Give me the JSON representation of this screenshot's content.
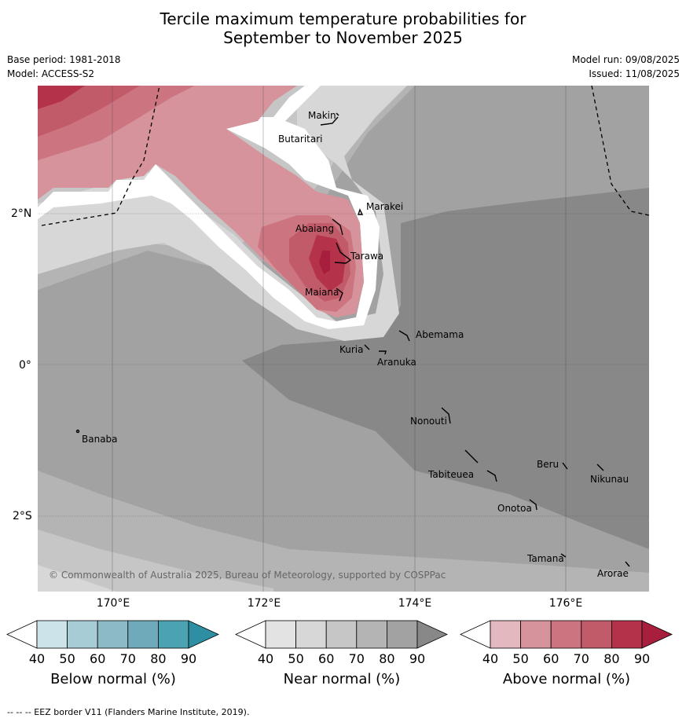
{
  "title_line1": "Tercile maximum temperature probabilities for",
  "title_line2": "September to November 2025",
  "base_period": "Base period: 1981-2018",
  "model": "Model: ACCESS-S2",
  "model_run": "Model run: 09/08/2025",
  "issued": "Issued: 11/08/2025",
  "copyright": "© Commonwealth of Australia 2025, Bureau of Meteorology, supported by COSPPac",
  "lat_labels": [
    "2°N",
    "0°",
    "2°S"
  ],
  "lon_labels": [
    "170°E",
    "172°E",
    "174°E",
    "176°E"
  ],
  "islands": {
    "makin": "Makin",
    "butaritari": "Butaritari",
    "marakei": "Marakei",
    "abaiang": "Abaiang",
    "tarawa": "Tarawa",
    "maiana": "Maiana",
    "abemama": "Abemama",
    "kuria": "Kuria",
    "aranuka": "Aranuka",
    "nonouti": "Nonouti",
    "banaba": "Banaba",
    "beru": "Beru",
    "nikunau": "Nikunau",
    "tabiteuea": "Tabiteuea",
    "onotoa": "Onotoa",
    "tamana": "Tamana",
    "arorae": "Arorae"
  },
  "colorbars": {
    "ticks": [
      "40",
      "50",
      "60",
      "70",
      "80",
      "90"
    ],
    "below": {
      "title": "Below normal (%)",
      "colors": [
        "#ffffff",
        "#cce3ea",
        "#a8ccd5",
        "#8cbac6",
        "#6eaab9",
        "#4ba3b1",
        "#2e8fa3"
      ]
    },
    "near": {
      "title": "Near normal (%)",
      "colors": [
        "#ffffff",
        "#e3e3e3",
        "#d7d7d7",
        "#c6c6c6",
        "#b4b4b4",
        "#a2a2a2",
        "#888888"
      ]
    },
    "above": {
      "title": "Above normal (%)",
      "colors": [
        "#ffffff",
        "#e3b8be",
        "#d6939b",
        "#cc7480",
        "#c25b69",
        "#b4334a",
        "#a71f3c"
      ]
    }
  },
  "footer": "-- -- -- EEZ border V11 (Flanders Marine Institute, 2019)."
}
